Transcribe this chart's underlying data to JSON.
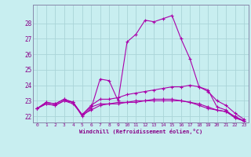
{
  "xlabel": "Windchill (Refroidissement éolien,°C)",
  "bg_color": "#c8eef0",
  "grid_color": "#aad4d8",
  "line_color": "#aa00aa",
  "ylim": [
    21.6,
    29.2
  ],
  "xlim": [
    -0.5,
    23.5
  ],
  "yticks": [
    22,
    23,
    24,
    25,
    26,
    27,
    28
  ],
  "xticks": [
    0,
    1,
    2,
    3,
    4,
    5,
    6,
    7,
    8,
    9,
    10,
    11,
    12,
    13,
    14,
    15,
    16,
    17,
    18,
    19,
    20,
    21,
    22,
    23
  ],
  "series": [
    [
      22.5,
      22.9,
      22.8,
      23.1,
      22.9,
      22.0,
      22.5,
      24.4,
      24.3,
      23.0,
      26.8,
      27.3,
      28.2,
      28.1,
      28.3,
      28.5,
      27.0,
      25.7,
      23.9,
      23.7,
      22.6,
      22.4,
      21.9,
      21.7
    ],
    [
      22.5,
      22.9,
      22.8,
      23.1,
      22.9,
      22.1,
      22.7,
      23.1,
      23.1,
      23.2,
      23.4,
      23.5,
      23.6,
      23.7,
      23.8,
      23.9,
      23.9,
      24.0,
      23.9,
      23.6,
      23.0,
      22.7,
      22.2,
      21.8
    ],
    [
      22.5,
      22.8,
      22.7,
      23.0,
      22.8,
      22.1,
      22.4,
      22.7,
      22.8,
      22.8,
      22.9,
      22.9,
      23.0,
      23.0,
      23.0,
      23.0,
      23.0,
      22.9,
      22.8,
      22.6,
      22.4,
      22.3,
      22.0,
      21.7
    ],
    [
      22.5,
      22.8,
      22.7,
      23.0,
      22.9,
      22.1,
      22.6,
      22.8,
      22.8,
      22.9,
      22.9,
      23.0,
      23.0,
      23.1,
      23.1,
      23.1,
      23.0,
      22.9,
      22.7,
      22.5,
      22.4,
      22.3,
      21.9,
      21.7
    ]
  ]
}
